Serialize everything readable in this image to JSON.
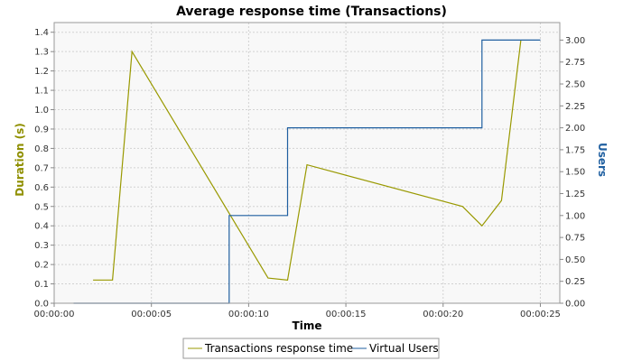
{
  "chart_data": {
    "type": "line",
    "title": "Average response time (Transactions)",
    "xlabel": "Time",
    "ylabel_left": "Duration (s)",
    "ylabel_right": "Users",
    "xlim": [
      0,
      26
    ],
    "xticks": [
      "00:00:00",
      "00:00:05",
      "00:00:10",
      "00:00:15",
      "00:00:20",
      "00:00:25"
    ],
    "ylim_left": [
      0,
      1.45
    ],
    "yticks_left": [
      "0.0",
      "0.1",
      "0.2",
      "0.3",
      "0.4",
      "0.5",
      "0.6",
      "0.7",
      "0.8",
      "0.9",
      "1.0",
      "1.1",
      "1.2",
      "1.3",
      "1.4"
    ],
    "ylim_right": [
      0,
      3.2
    ],
    "yticks_right": [
      "0.00",
      "0.25",
      "0.50",
      "0.75",
      "1.00",
      "1.25",
      "1.50",
      "1.75",
      "2.00",
      "2.25",
      "2.50",
      "2.75",
      "3.00"
    ],
    "grid": true,
    "legend_position": "bottom",
    "series": [
      {
        "name": "Transactions response time",
        "axis": "left",
        "color": "#999900",
        "points": [
          [
            2,
            0.12
          ],
          [
            3,
            0.12
          ],
          [
            4,
            1.3
          ],
          [
            11,
            0.13
          ],
          [
            12,
            0.12
          ],
          [
            13,
            0.715
          ],
          [
            21,
            0.5
          ],
          [
            22,
            0.4
          ],
          [
            23,
            0.53
          ],
          [
            24,
            1.36
          ]
        ]
      },
      {
        "name": "Virtual Users",
        "axis": "right",
        "color": "#1f5fa0",
        "step": true,
        "points": [
          [
            1,
            0
          ],
          [
            9,
            0
          ],
          [
            9,
            1
          ],
          [
            12,
            1
          ],
          [
            12,
            2
          ],
          [
            22,
            2
          ],
          [
            22,
            3
          ],
          [
            25,
            3
          ]
        ]
      }
    ]
  }
}
